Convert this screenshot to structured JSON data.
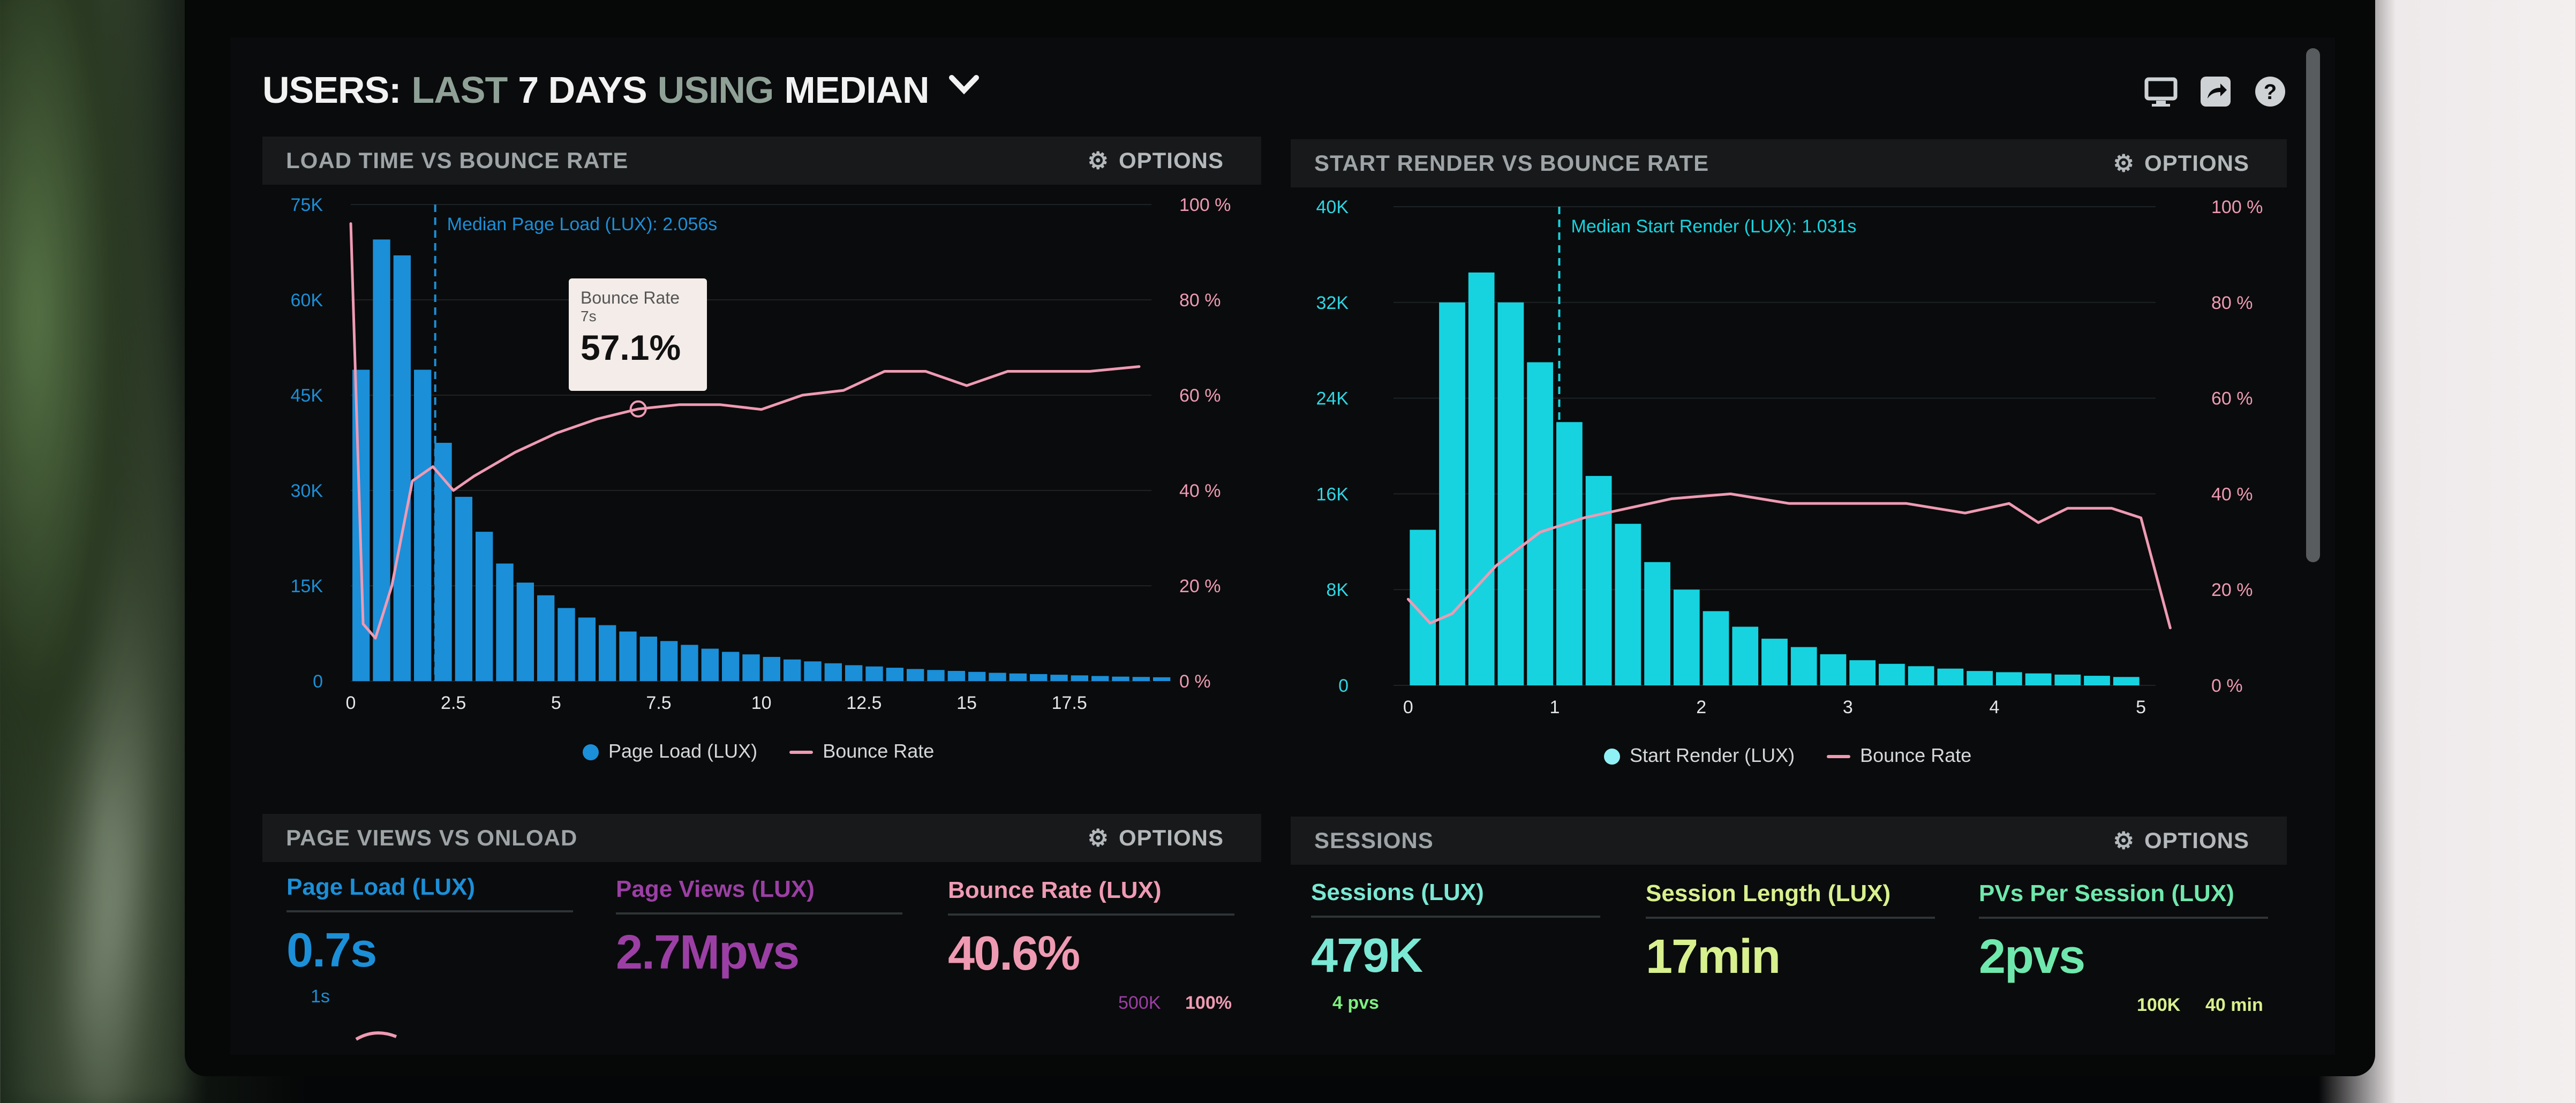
{
  "header": {
    "w1": "USERS:",
    "w2": "LAST",
    "w3": "7 DAYS",
    "w4": "USING",
    "w5": "MEDIAN"
  },
  "icons": {
    "monitor": "monitor-icon",
    "share": "share-icon",
    "help": "help-icon",
    "options": "gear-icon"
  },
  "colors": {
    "blue": "#1b8fd8",
    "cyan": "#17d3e0",
    "pink": "#ef9ab3",
    "purple": "#9b3fa5",
    "lime": "#d8f08e",
    "mint": "#6fe8ad",
    "teal": "#7ae8d4"
  },
  "panels": {
    "load": {
      "title": "LOAD TIME VS BOUNCE RATE",
      "options": "OPTIONS"
    },
    "render": {
      "title": "START RENDER VS BOUNCE RATE",
      "options": "OPTIONS"
    },
    "pageviews": {
      "title": "PAGE VIEWS VS ONLOAD",
      "options": "OPTIONS"
    },
    "sessions": {
      "title": "SESSIONS",
      "options": "OPTIONS"
    }
  },
  "tooltip": {
    "label": "Bounce Rate",
    "sub": "7s",
    "value": "57.1%"
  },
  "chart_data": [
    {
      "type": "bar",
      "title": "LOAD TIME VS BOUNCE RATE",
      "annotation": "Median Page Load (LUX): 2.056s",
      "median_x": 2.056,
      "xlim": [
        0,
        19.5
      ],
      "xticks": [
        "0",
        "2.5",
        "5",
        "7.5",
        "10",
        "12.5",
        "15",
        "17.5"
      ],
      "ylim": [
        0,
        75000
      ],
      "yticks": [
        "0",
        "15K",
        "30K",
        "45K",
        "60K",
        "75K"
      ],
      "y2lim": [
        0,
        100
      ],
      "y2ticks": [
        "0 %",
        "20 %",
        "40 %",
        "60 %",
        "80 %",
        "100 %"
      ],
      "bin_width": 0.5,
      "series": [
        {
          "name": "Page Load (LUX)",
          "kind": "bar",
          "values": [
            49000,
            69500,
            67000,
            49000,
            37500,
            29000,
            23500,
            18500,
            15500,
            13500,
            11500,
            10000,
            8800,
            7800,
            7000,
            6300,
            5700,
            5100,
            4600,
            4200,
            3800,
            3400,
            3100,
            2800,
            2500,
            2300,
            2100,
            1900,
            1750,
            1600,
            1450,
            1300,
            1200,
            1100,
            1000,
            900,
            800,
            700,
            650,
            600
          ]
        },
        {
          "name": "Bounce Rate",
          "kind": "line",
          "x": [
            0,
            0.3,
            0.6,
            1,
            1.5,
            2,
            2.5,
            3,
            4,
            5,
            6,
            7,
            8,
            9,
            10,
            11,
            12,
            13,
            14,
            15,
            16,
            17,
            18,
            19.2
          ],
          "values": [
            96,
            12,
            9,
            20,
            42,
            45,
            40,
            43,
            48,
            52,
            55,
            57.1,
            58,
            58,
            57,
            60,
            61,
            65,
            65,
            62,
            65,
            65,
            65,
            66
          ]
        }
      ],
      "legend": [
        "Page Load (LUX)",
        "Bounce Rate"
      ]
    },
    {
      "type": "bar",
      "title": "START RENDER VS BOUNCE RATE",
      "annotation": "Median Start Render (LUX): 1.031s",
      "median_x": 1.031,
      "xlim": [
        -0.1,
        5.1
      ],
      "xticks": [
        "0",
        "1",
        "2",
        "3",
        "4",
        "5"
      ],
      "ylim": [
        0,
        40000
      ],
      "yticks": [
        "0",
        "8K",
        "16K",
        "24K",
        "32K",
        "40K"
      ],
      "y2lim": [
        0,
        100
      ],
      "y2ticks": [
        "0 %",
        "20 %",
        "40 %",
        "60 %",
        "80 %",
        "100 %"
      ],
      "bin_width": 0.2,
      "series": [
        {
          "name": "Start Render (LUX)",
          "kind": "bar",
          "values": [
            13000,
            32000,
            34500,
            32000,
            27000,
            22000,
            17500,
            13500,
            10300,
            8000,
            6200,
            4900,
            3900,
            3200,
            2600,
            2100,
            1800,
            1600,
            1400,
            1200,
            1100,
            1000,
            900,
            800,
            700
          ]
        },
        {
          "name": "Bounce Rate",
          "kind": "line",
          "x": [
            0,
            0.15,
            0.3,
            0.6,
            0.9,
            1.2,
            1.5,
            1.8,
            2.2,
            2.6,
            3,
            3.4,
            3.8,
            4.1,
            4.3,
            4.5,
            4.8,
            5,
            5.2
          ],
          "values": [
            18,
            13,
            15,
            25,
            32,
            35,
            37,
            39,
            40,
            38,
            38,
            38,
            36,
            38,
            34,
            37,
            37,
            35,
            12
          ]
        }
      ],
      "legend": [
        "Start Render (LUX)",
        "Bounce Rate"
      ]
    }
  ],
  "metrics": [
    {
      "label": "Page Load (LUX)",
      "value": "0.7s",
      "color": "#1b8fd8"
    },
    {
      "label": "Page Views (LUX)",
      "value": "2.7Mpvs",
      "color": "#9b3fa5"
    },
    {
      "label": "Bounce Rate (LUX)",
      "value": "40.6%",
      "color": "#ef9ab3"
    },
    {
      "label": "Sessions (LUX)",
      "value": "479K",
      "color": "#7ae8d4"
    },
    {
      "label": "Session Length (LUX)",
      "value": "17min",
      "color": "#d8f08e"
    },
    {
      "label": "PVs Per Session (LUX)",
      "value": "2pvs",
      "color": "#6fe8ad"
    }
  ],
  "sub": {
    "s1": "1s",
    "s2": "500K",
    "s3": "100%",
    "s4": "4 pvs",
    "s5": "100K",
    "s6": "40 min"
  }
}
